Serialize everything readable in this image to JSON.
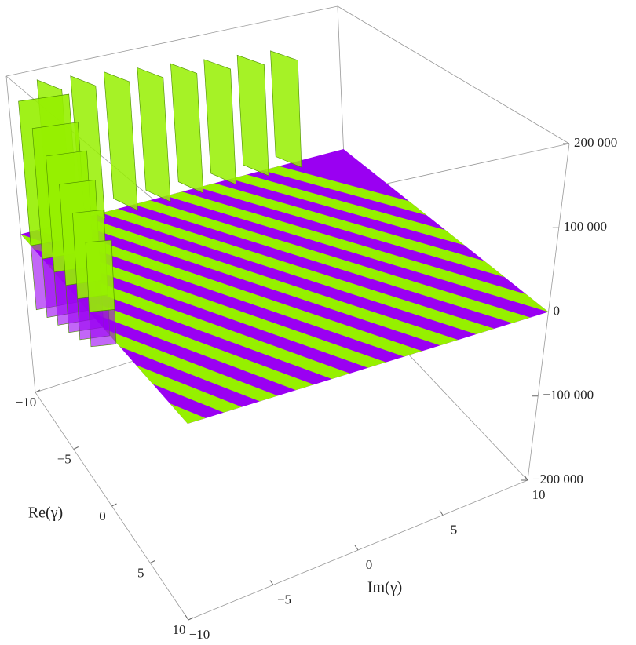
{
  "chart_data": {
    "type": "surface3d",
    "x_label": "Im(γ)",
    "y_label": "Re(γ)",
    "xlim": [
      -10,
      10
    ],
    "ylim": [
      -10,
      10
    ],
    "zlim": [
      -200000,
      200000
    ],
    "xticks": [
      {
        "value": -10,
        "label": "−10"
      },
      {
        "value": -5,
        "label": "−5"
      },
      0,
      5,
      10
    ],
    "yticks": [
      {
        "value": -10,
        "label": "−10"
      },
      {
        "value": -5,
        "label": "−5"
      },
      0,
      5,
      10
    ],
    "zticks": [
      {
        "value": -200000,
        "label": "−200 000"
      },
      {
        "value": -100000,
        "label": "−100 000"
      },
      0,
      {
        "value": 100000,
        "label": "100 000"
      },
      {
        "value": 200000,
        "label": "200 000"
      }
    ],
    "surface_colors": [
      "#9a00f2",
      "#96f000"
    ]
  }
}
